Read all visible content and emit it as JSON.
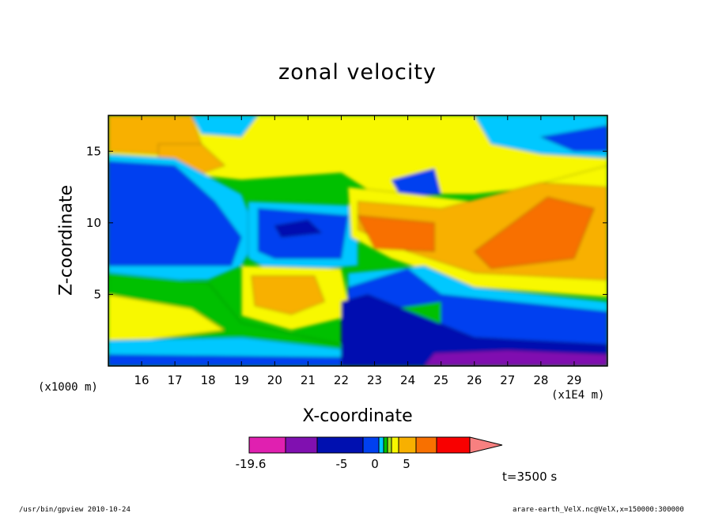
{
  "chart_data": {
    "type": "contour",
    "title": "zonal velocity",
    "xlabel": "X-coordinate",
    "ylabel": "Z-coordinate",
    "x_multiplier": "(x1E4 m)",
    "y_multiplier": "(x1000 m)",
    "x_ticks": [
      "16",
      "17",
      "18",
      "19",
      "20",
      "21",
      "22",
      "23",
      "24",
      "25",
      "26",
      "27",
      "28",
      "29"
    ],
    "x_tick_values": [
      16,
      17,
      18,
      19,
      20,
      21,
      22,
      23,
      24,
      25,
      26,
      27,
      28,
      29
    ],
    "xlim": [
      15.0,
      30.0
    ],
    "y_ticks": [
      "5",
      "10",
      "15"
    ],
    "y_tick_values": [
      5,
      10,
      15
    ],
    "ylim": [
      0.0,
      17.5
    ],
    "time_label": "t=3500 s",
    "colorbar": {
      "labels": [
        "-19.6",
        "-5",
        "0",
        "5"
      ],
      "label_values": [
        -19.6,
        -5,
        0,
        5
      ],
      "colors": [
        "#e020b0",
        "#8010b0",
        "#0010b0",
        "#0040f0",
        "#00c8ff",
        "#00c000",
        "#a0e020",
        "#f8f800",
        "#f8b000",
        "#f87000",
        "#f80000",
        "#f88080"
      ]
    },
    "regions": [
      {
        "name": "upper-left-warm",
        "level": "#f8b000",
        "x": [
          15.0,
          17.5
        ],
        "z": [
          13.0,
          17.5
        ]
      },
      {
        "name": "left-blue-mid",
        "level": "#0040f0",
        "x": [
          15.0,
          19.0
        ],
        "z": [
          6.5,
          13.5
        ]
      },
      {
        "name": "lower-left-yellow",
        "level": "#f8f800",
        "x": [
          15.0,
          18.0
        ],
        "z": [
          2.0,
          4.5
        ]
      },
      {
        "name": "center-blue",
        "level": "#0040f0",
        "x": [
          19.0,
          22.0
        ],
        "z": [
          7.5,
          11.0
        ]
      },
      {
        "name": "center-warm",
        "level": "#f8b000",
        "x": [
          19.0,
          21.5
        ],
        "z": [
          3.5,
          6.5
        ]
      },
      {
        "name": "right-orange",
        "level": "#f87000",
        "x": [
          22.0,
          30.0
        ],
        "z": [
          6.0,
          12.5
        ]
      },
      {
        "name": "right-blue-lower",
        "level": "#0040f0",
        "x": [
          22.0,
          30.0
        ],
        "z": [
          0.0,
          4.5
        ]
      },
      {
        "name": "bottom-purple",
        "level": "#8010b0",
        "x": [
          24.5,
          30.0
        ],
        "z": [
          0.0,
          1.0
        ]
      }
    ]
  },
  "footer_left": "/usr/bin/gpview   2010-10-24",
  "footer_right": "arare-earth_VelX.nc@VelX,x=150000:300000"
}
